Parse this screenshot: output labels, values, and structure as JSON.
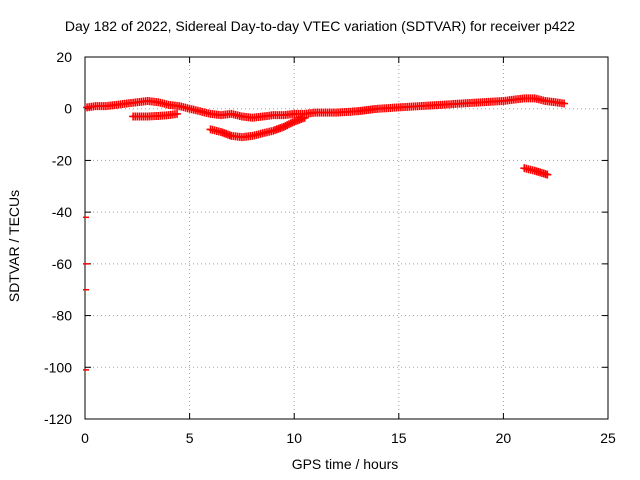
{
  "chart_data": {
    "type": "scatter",
    "title": "Day 182 of 2022, Sidereal Day-to-day VTEC variation (SDTVAR) for receiver p422",
    "xlabel": "GPS time / hours",
    "ylabel": "SDTVAR / TECUs",
    "xlim": [
      0,
      25
    ],
    "ylim": [
      -120,
      20
    ],
    "xticks": [
      0,
      5,
      10,
      15,
      20,
      25
    ],
    "yticks": [
      20,
      0,
      -20,
      -40,
      -60,
      -80,
      -100,
      -120
    ],
    "grid": true,
    "legend": false,
    "color": "#ff0000",
    "series": [
      {
        "name": "main trace",
        "points": [
          [
            0.1,
            0.5
          ],
          [
            0.5,
            1
          ],
          [
            1,
            1
          ],
          [
            1.5,
            1.5
          ],
          [
            2,
            2
          ],
          [
            2.5,
            2.5
          ],
          [
            3,
            3
          ],
          [
            3.5,
            2.5
          ],
          [
            4,
            1.5
          ],
          [
            4.5,
            1
          ],
          [
            5,
            0
          ],
          [
            5.5,
            -1
          ],
          [
            6,
            -2
          ],
          [
            6.5,
            -2.5
          ],
          [
            7,
            -2
          ],
          [
            7.5,
            -3
          ],
          [
            8,
            -3.5
          ],
          [
            8.5,
            -3
          ],
          [
            9,
            -2.5
          ],
          [
            9.5,
            -2.5
          ],
          [
            10,
            -2
          ],
          [
            10.5,
            -2
          ],
          [
            11,
            -1.5
          ],
          [
            12,
            -1.5
          ],
          [
            13,
            -1
          ],
          [
            14,
            0
          ],
          [
            15,
            0.5
          ],
          [
            16,
            1
          ],
          [
            17,
            1.5
          ],
          [
            18,
            2
          ],
          [
            19,
            2.5
          ],
          [
            20,
            3
          ],
          [
            20.5,
            3.5
          ],
          [
            21,
            4
          ],
          [
            21.5,
            4
          ],
          [
            22,
            3
          ],
          [
            22.5,
            2.5
          ],
          [
            22.9,
            2
          ]
        ]
      },
      {
        "name": "lower branch",
        "points": [
          [
            2.3,
            -3
          ],
          [
            3,
            -3
          ],
          [
            3.5,
            -2.8
          ],
          [
            4,
            -2.5
          ],
          [
            4.4,
            -2
          ]
        ]
      },
      {
        "name": "dip",
        "points": [
          [
            6,
            -8
          ],
          [
            6.5,
            -9
          ],
          [
            7,
            -10.5
          ],
          [
            7.5,
            -11
          ],
          [
            8,
            -10.5
          ],
          [
            8.5,
            -9.5
          ],
          [
            9,
            -8.5
          ],
          [
            9.5,
            -7
          ],
          [
            10,
            -5
          ],
          [
            10.5,
            -3.5
          ]
        ]
      },
      {
        "name": "late segment",
        "points": [
          [
            21,
            -23
          ],
          [
            21.5,
            -24
          ],
          [
            22.1,
            -25.5
          ]
        ]
      },
      {
        "name": "axis outliers",
        "points": [
          [
            0,
            -42
          ],
          [
            0,
            -60
          ],
          [
            0,
            -70
          ],
          [
            0,
            -101
          ]
        ]
      }
    ]
  }
}
